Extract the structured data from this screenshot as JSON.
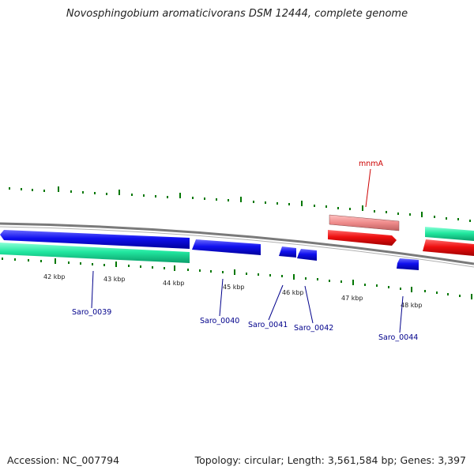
{
  "title": "Novosphingobium aromaticivorans DSM 12444, complete genome",
  "footer": {
    "accession": "Accession: NC_007794",
    "summary": "Topology: circular; Length: 3,561,584 bp; Genes: 3,397"
  },
  "kbp_labels": [
    "42 kbp",
    "43 kbp",
    "44 kbp",
    "45 kbp",
    "46 kbp",
    "47 kbp",
    "48 kbp"
  ],
  "gene_labels": {
    "mnmA": "mnmA",
    "saro_0039": "Saro_0039",
    "saro_0040": "Saro_0040",
    "saro_0041": "Saro_0041",
    "saro_0042": "Saro_0042",
    "saro_0044": "Saro_0044"
  },
  "colors": {
    "backbone": "#808080",
    "cds_forward": "#0000ee",
    "cds_reverse": "#1de9a0",
    "trna": "#ee0000",
    "trna_gene": "#ee8a8a",
    "tick": "#007700",
    "label_blue": "#00008b",
    "label_red": "#cc0000"
  }
}
